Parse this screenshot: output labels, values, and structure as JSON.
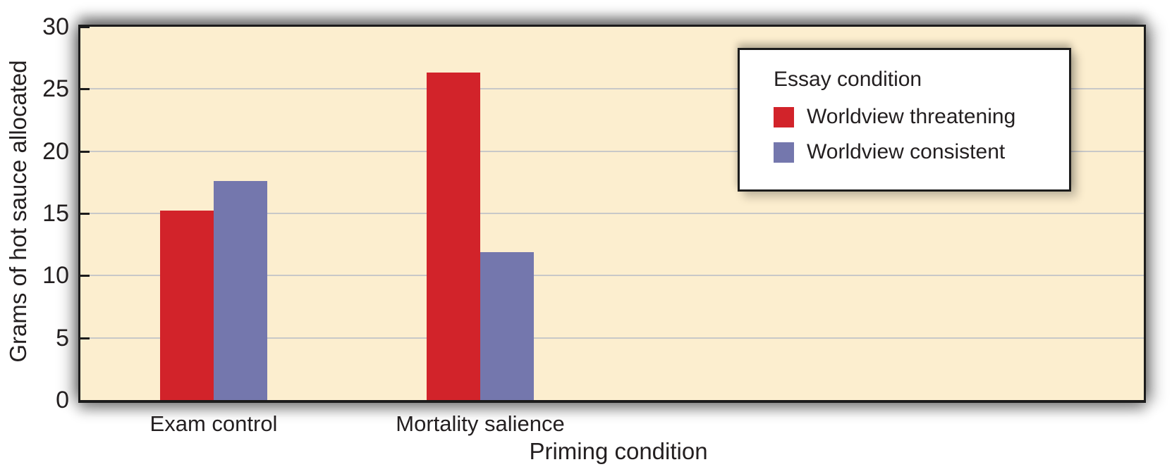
{
  "chart_data": {
    "type": "bar",
    "title": "",
    "categories": [
      "Exam control",
      "Mortality salience"
    ],
    "series": [
      {
        "name": "Worldview threatening",
        "color": "#d2232a",
        "values": [
          15.2,
          26.3
        ]
      },
      {
        "name": "Worldview consistent",
        "color": "#7477ad",
        "values": [
          17.6,
          11.9
        ]
      }
    ],
    "xlabel": "Priming condition",
    "ylabel": "Grams of hot sauce allocated",
    "ylim": [
      0,
      30
    ],
    "yticks": [
      0,
      5,
      10,
      15,
      20,
      25,
      30
    ],
    "grid": "horizontal-light-gray",
    "plot_background": "#fceecf",
    "gridline_color": "#c8c8c8",
    "axis_color": "#1c1c1c",
    "text_color": "#231f20",
    "legend": {
      "title": "Essay condition",
      "position": "top-right",
      "background": "#ffffff",
      "border_color": "#1c1c1c"
    }
  }
}
